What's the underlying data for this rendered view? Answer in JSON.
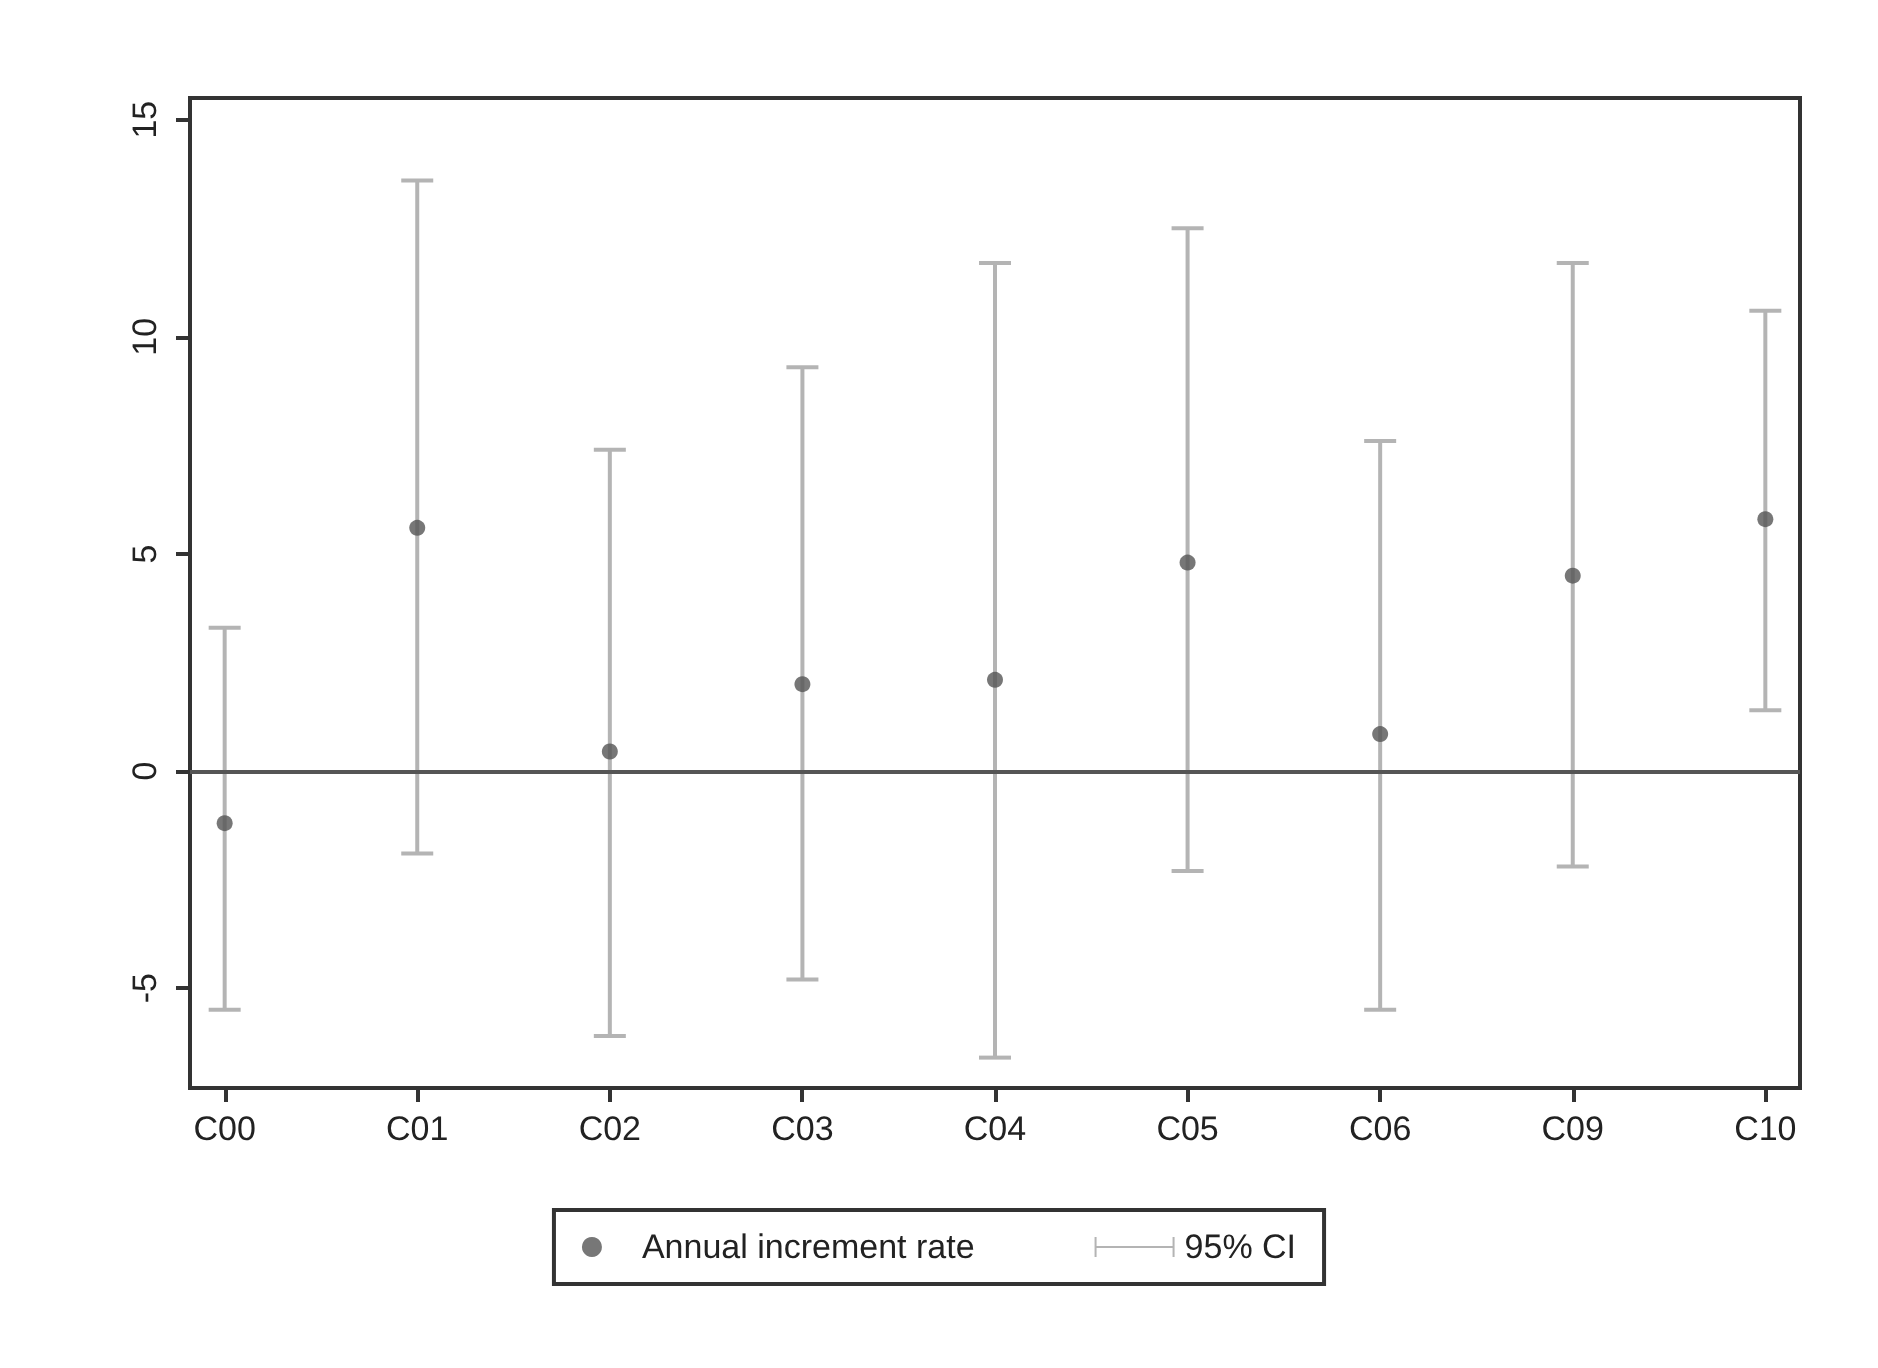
{
  "chart_data": {
    "type": "scatter",
    "categories": [
      "C00",
      "C01",
      "C02",
      "C03",
      "C04",
      "C05",
      "C06",
      "C09",
      "C10"
    ],
    "series": [
      {
        "name": "Annual increment rate",
        "color": "#555555",
        "values": [
          -1.2,
          5.6,
          0.45,
          2.0,
          2.1,
          4.8,
          0.85,
          4.5,
          5.8
        ],
        "errors": [
          [
            -5.5,
            3.3
          ],
          [
            -1.9,
            13.6
          ],
          [
            -6.1,
            7.4
          ],
          [
            -4.8,
            9.3
          ],
          [
            -6.6,
            11.7
          ],
          [
            -2.3,
            12.5
          ],
          [
            -5.5,
            7.6
          ],
          [
            -2.2,
            11.7
          ],
          [
            1.4,
            10.6
          ]
        ]
      }
    ],
    "annotations": [
      "95% CI"
    ],
    "ylim": [
      -7.3,
      15.5
    ],
    "yticks": [
      -5,
      0,
      5,
      10,
      15
    ],
    "ref_lines": [
      {
        "axis": "y",
        "value": 0,
        "color": "#555555"
      }
    ],
    "marker": "circle",
    "grid": false,
    "legend": "bottom"
  }
}
